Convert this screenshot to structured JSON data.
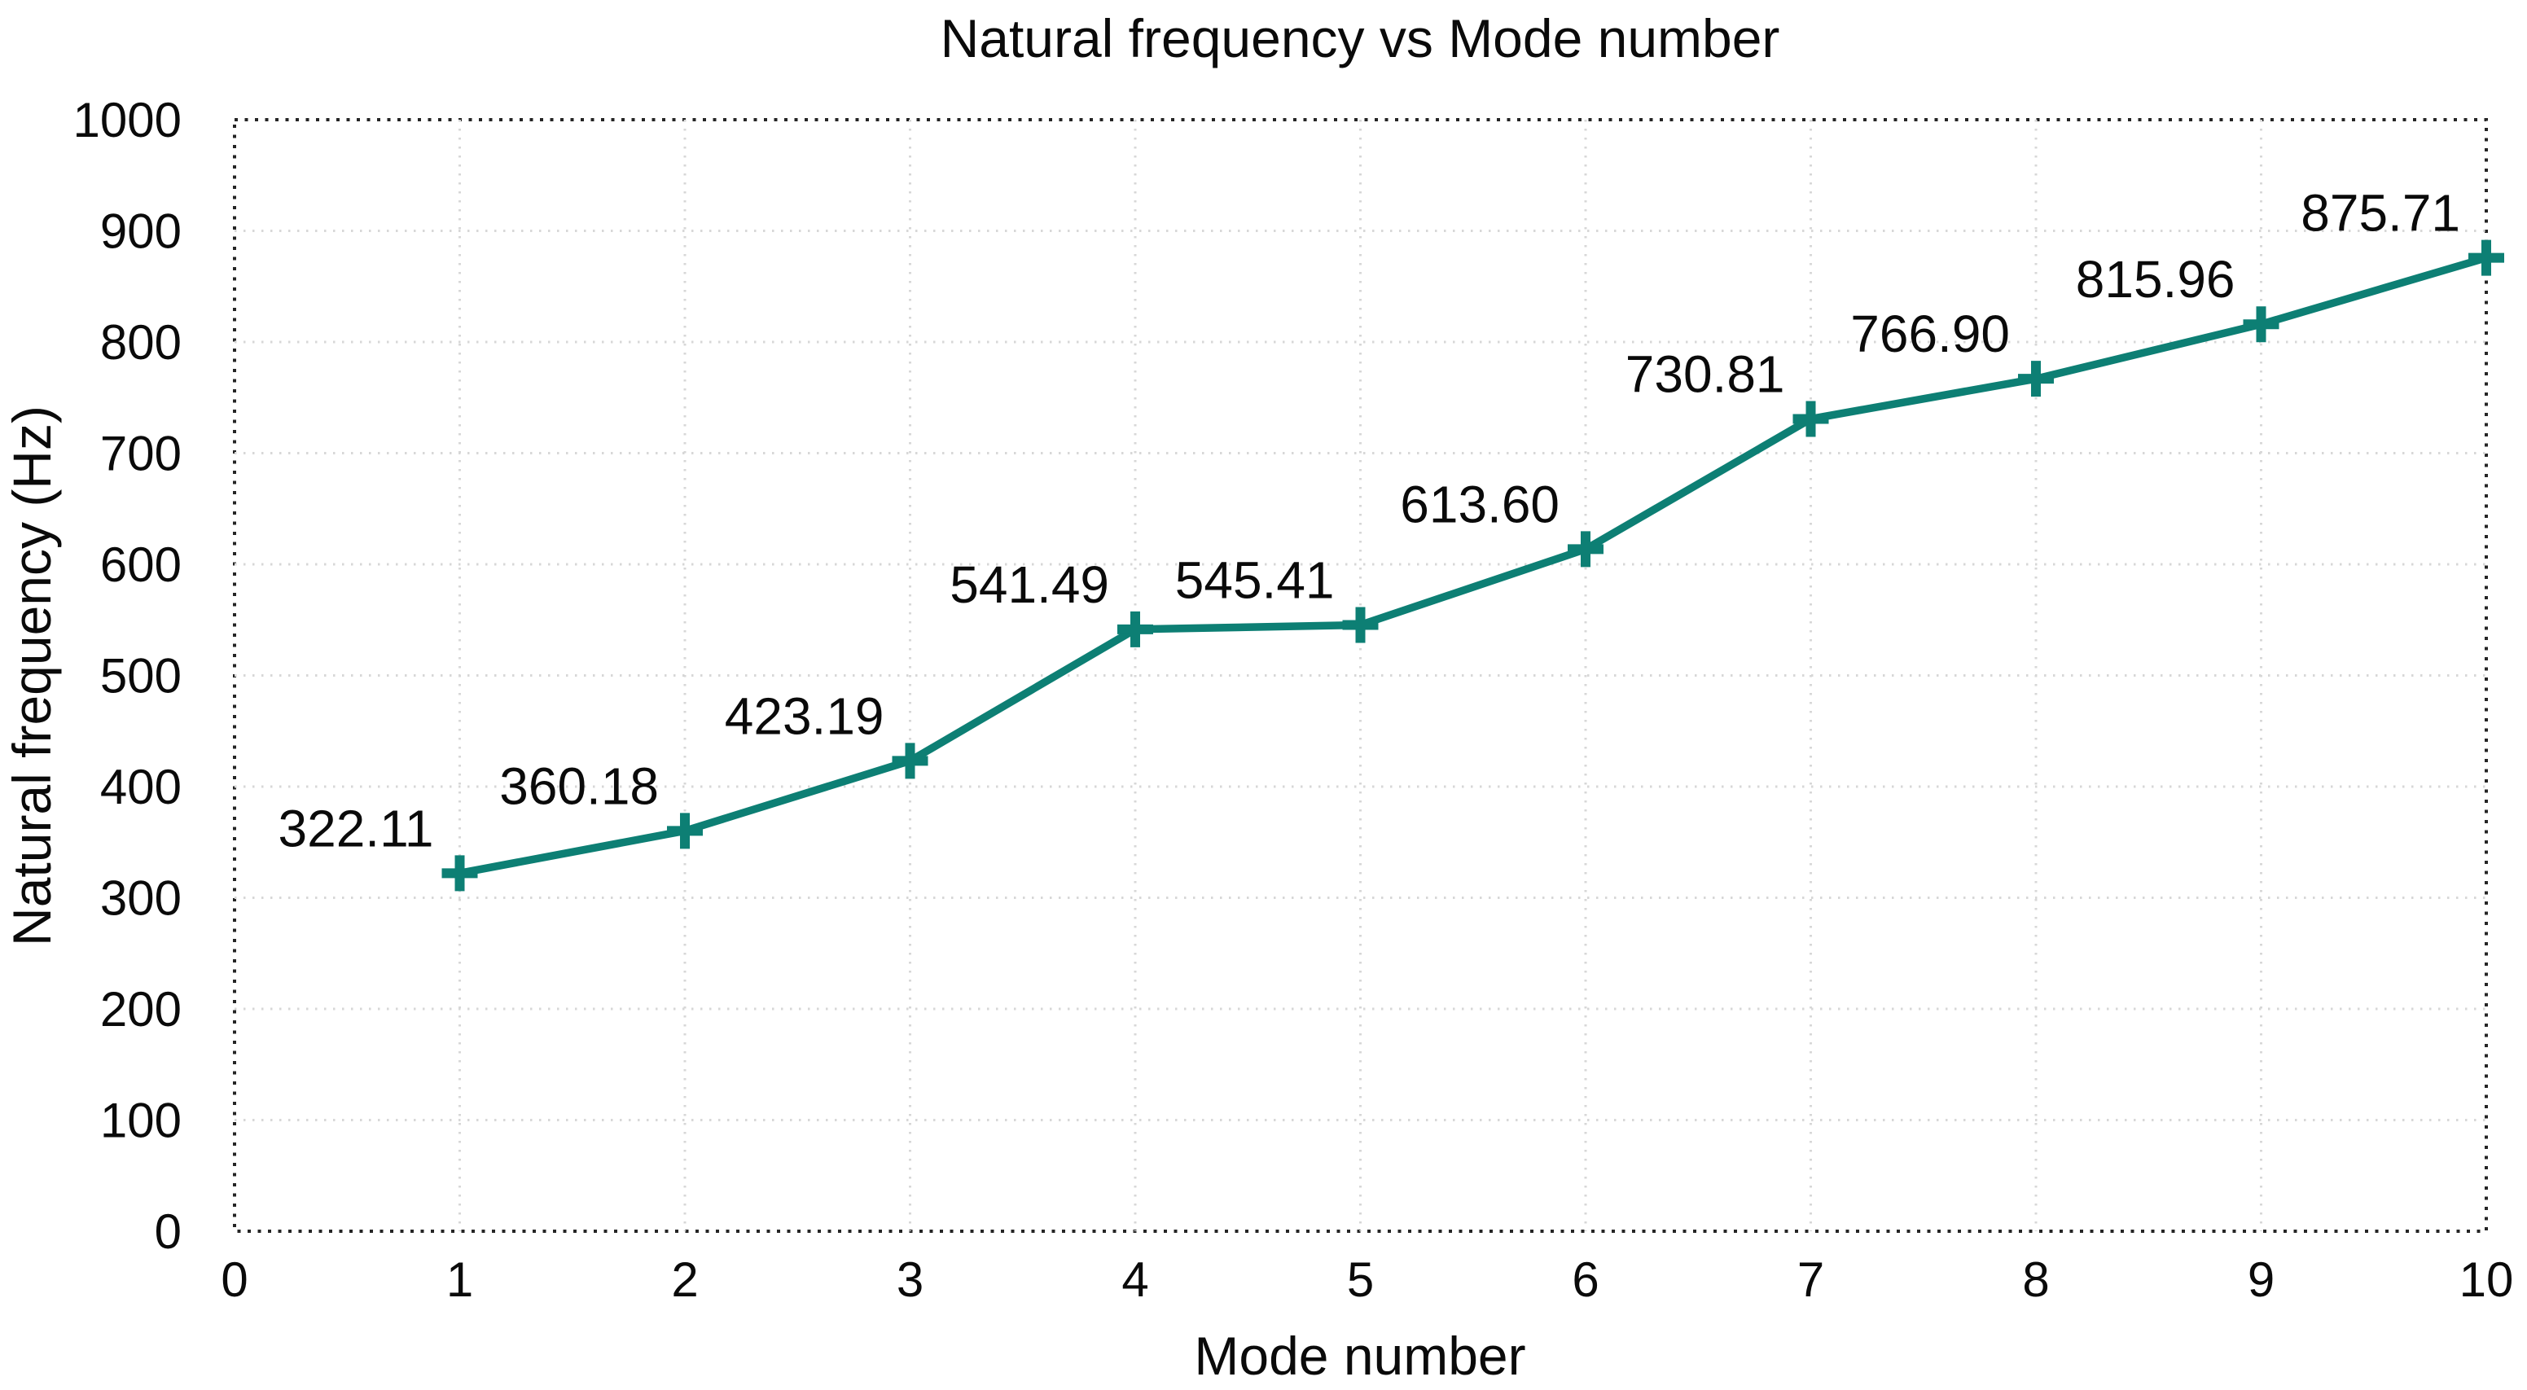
{
  "chart_data": {
    "type": "line",
    "title": "Natural frequency vs Mode number",
    "xlabel": "Mode number",
    "ylabel": "Natural frequency (Hz)",
    "x": [
      1,
      2,
      3,
      4,
      5,
      6,
      7,
      8,
      9,
      10
    ],
    "values": [
      322.11,
      360.18,
      423.19,
      541.49,
      545.41,
      613.6,
      730.81,
      766.9,
      815.96,
      875.71
    ],
    "point_labels": [
      "322.11",
      "360.18",
      "423.19",
      "541.49",
      "545.41",
      "613.60",
      "730.81",
      "766.90",
      "815.96",
      "875.71"
    ],
    "xlim": [
      0,
      10
    ],
    "ylim": [
      0,
      1000
    ],
    "xticks": [
      0,
      1,
      2,
      3,
      4,
      5,
      6,
      7,
      8,
      9,
      10
    ],
    "yticks": [
      0,
      100,
      200,
      300,
      400,
      500,
      600,
      700,
      800,
      900,
      1000
    ],
    "grid": true,
    "legend": false,
    "marker": "plus",
    "series_color": "#0d7f74",
    "label_color": "#0a0a0a",
    "grid_color": "#d7d7d7",
    "border_color": "#252525",
    "background_color": "#ffffff"
  }
}
